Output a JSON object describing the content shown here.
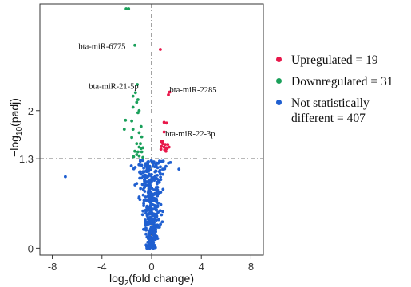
{
  "chart_data": {
    "type": "scatter",
    "title": "",
    "xlabel_main": "log",
    "xlabel_sub": "2",
    "xlabel_rest": "(fold change)",
    "ylabel_prefix": "−log",
    "ylabel_sub": "10",
    "ylabel_rest": "(padj)",
    "xlim": [
      -9,
      9
    ],
    "ylim": [
      -0.1,
      3.55
    ],
    "x_ticks": [
      -8,
      -4,
      0,
      4,
      8
    ],
    "x_tick_labels": [
      "-8",
      "-4",
      "0",
      "4",
      "8"
    ],
    "y_ticks": [
      0,
      1.3,
      2
    ],
    "y_tick_labels": [
      "0",
      "1.3",
      "2"
    ],
    "thresholds": {
      "x": 0,
      "y": 1.3
    },
    "grid": false,
    "legend": {
      "position": "right",
      "items": [
        {
          "text": "Upregulated = 19",
          "color": "#e8174a"
        },
        {
          "text": "Downregulated = 31",
          "color": "#1aa05a"
        },
        {
          "text": "Not statistically different = 407",
          "color": "#1f5fd0"
        }
      ]
    },
    "annotations": [
      {
        "text": "bta-miR-6775",
        "x": -2.1,
        "y": 2.94,
        "anchor": "end"
      },
      {
        "text": "bta-miR-21-5p",
        "x": -1.05,
        "y": 2.36,
        "anchor": "end"
      },
      {
        "text": "bta-miR-2285",
        "x": 1.45,
        "y": 2.31,
        "anchor": "start"
      },
      {
        "text": "bta-miR-22-3p",
        "x": 1.1,
        "y": 1.67,
        "anchor": "start"
      }
    ],
    "series": [
      {
        "name": "Upregulated = 19",
        "color": "#e8174a",
        "points": [
          [
            0.7,
            2.89
          ],
          [
            1.35,
            2.23
          ],
          [
            1.45,
            2.27
          ],
          [
            1.0,
            1.83
          ],
          [
            1.2,
            1.82
          ],
          [
            1.0,
            1.69
          ],
          [
            0.8,
            1.55
          ],
          [
            0.9,
            1.52
          ],
          [
            1.1,
            1.51
          ],
          [
            1.3,
            1.51
          ],
          [
            0.8,
            1.48
          ],
          [
            1.0,
            1.47
          ],
          [
            1.2,
            1.46
          ],
          [
            1.4,
            1.47
          ],
          [
            0.75,
            1.44
          ],
          [
            1.05,
            1.43
          ],
          [
            1.25,
            1.45
          ],
          [
            0.9,
            1.55
          ],
          [
            1.15,
            1.41
          ]
        ]
      },
      {
        "name": "Downregulated = 31",
        "color": "#1aa05a",
        "points": [
          [
            -2.05,
            3.48
          ],
          [
            -1.85,
            3.48
          ],
          [
            -1.35,
            2.95
          ],
          [
            -1.15,
            2.38
          ],
          [
            -1.5,
            2.21
          ],
          [
            -1.3,
            2.26
          ],
          [
            -1.1,
            2.16
          ],
          [
            -1.2,
            2.12
          ],
          [
            -1.5,
            2.05
          ],
          [
            -1.0,
            2.0
          ],
          [
            -1.1,
            1.97
          ],
          [
            -2.1,
            1.86
          ],
          [
            -1.6,
            1.85
          ],
          [
            -2.2,
            1.73
          ],
          [
            -1.5,
            1.73
          ],
          [
            -0.85,
            1.77
          ],
          [
            -1.0,
            1.68
          ],
          [
            -0.8,
            1.62
          ],
          [
            -1.6,
            1.61
          ],
          [
            -1.2,
            1.52
          ],
          [
            -0.9,
            1.52
          ],
          [
            -1.0,
            1.47
          ],
          [
            -0.7,
            1.46
          ],
          [
            -1.35,
            1.41
          ],
          [
            -1.1,
            1.4
          ],
          [
            -0.8,
            1.4
          ],
          [
            -1.2,
            1.36
          ],
          [
            -1.0,
            1.34
          ],
          [
            -0.7,
            1.32
          ],
          [
            -0.85,
            1.45
          ],
          [
            -1.45,
            1.33
          ]
        ]
      },
      {
        "name": "Not statistically different = 407",
        "color": "#1f5fd0",
        "points": [
          [
            -6.95,
            1.04
          ],
          [
            2.2,
            1.15
          ],
          [
            -0.9,
            1.28
          ],
          [
            0.8,
            1.26
          ],
          [
            -0.3,
            1.2
          ],
          [
            0.9,
            1.15
          ]
        ],
        "generated_count": 401
      }
    ]
  }
}
